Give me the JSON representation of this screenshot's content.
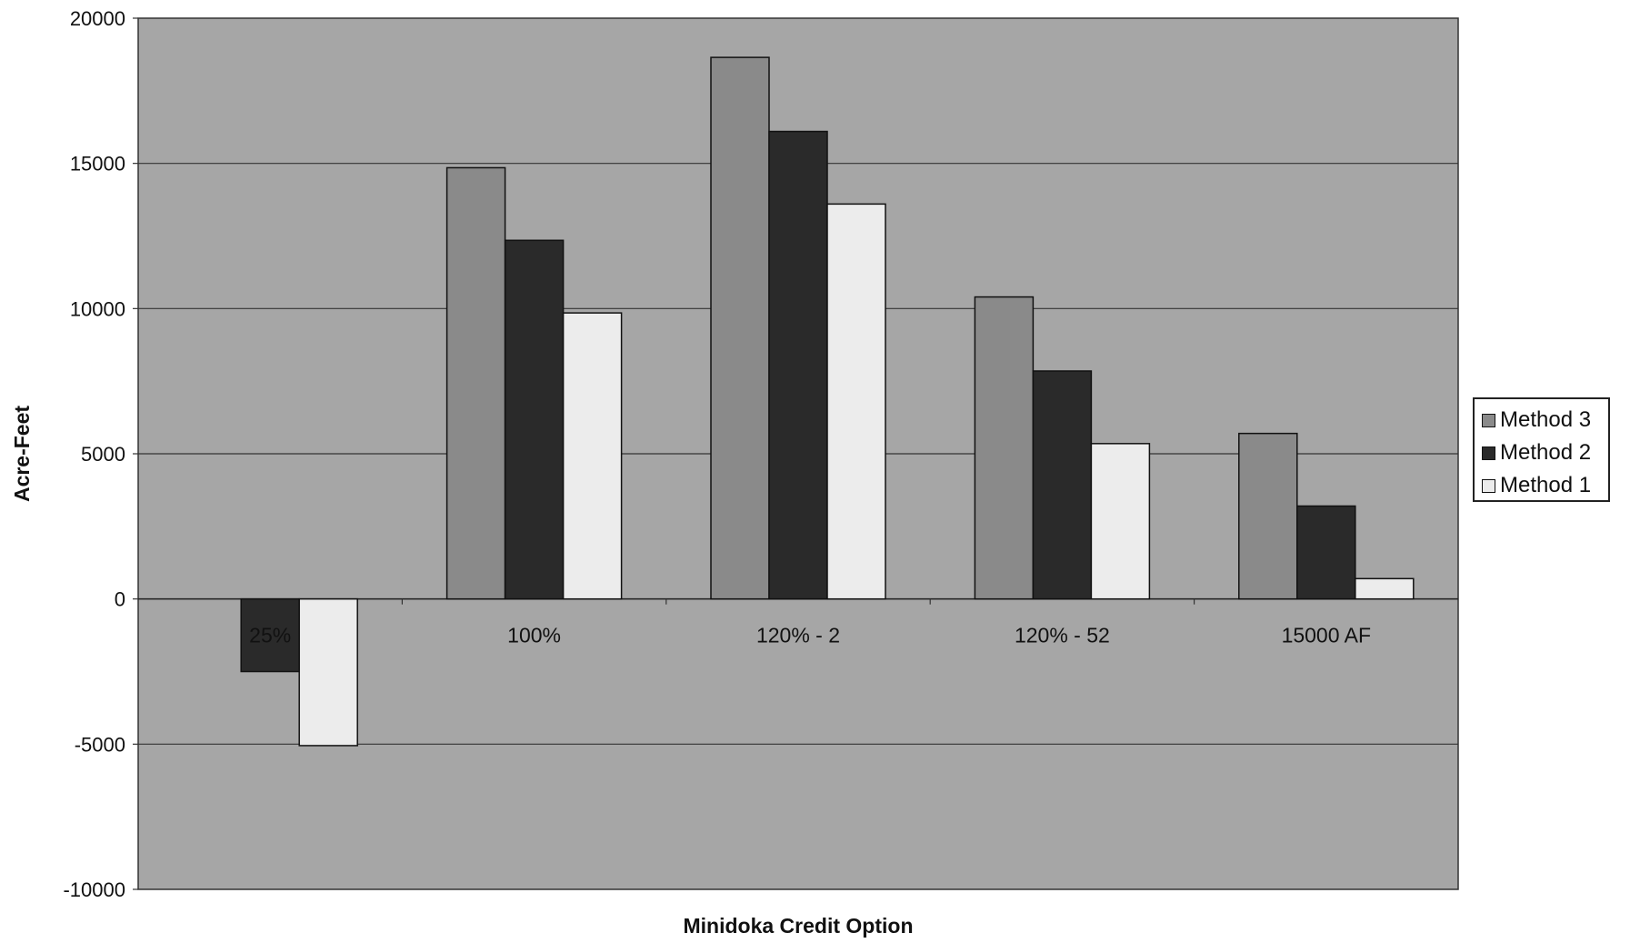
{
  "chart_data": {
    "type": "bar",
    "title": "",
    "xlabel": "Minidoka Credit Option",
    "ylabel": "Acre-Feet",
    "ylim": [
      -10000,
      20000
    ],
    "yticks": [
      20000,
      15000,
      10000,
      5000,
      0,
      -5000,
      -10000
    ],
    "grid": true,
    "legend_position": "right",
    "categories": [
      "25%",
      "100%",
      "120% - 2",
      "120% - 52",
      "15000 AF"
    ],
    "series": [
      {
        "name": "Method 3",
        "color": "#8a8a8a",
        "values": [
          null,
          14850,
          18650,
          10400,
          5700
        ]
      },
      {
        "name": "Method 2",
        "color": "#2a2a2a",
        "values": [
          -2500,
          12350,
          16100,
          7850,
          3200
        ]
      },
      {
        "name": "Method 1",
        "color": "#ececec",
        "values": [
          -5050,
          9850,
          13600,
          5350,
          700
        ]
      }
    ]
  }
}
